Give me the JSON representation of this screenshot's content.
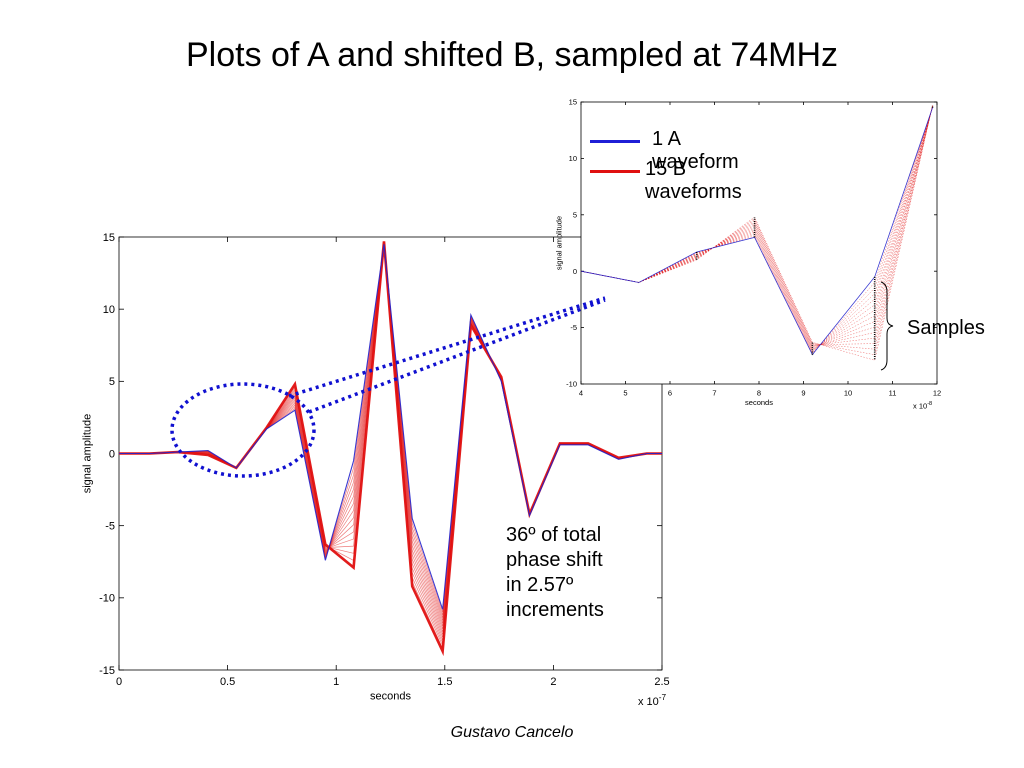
{
  "title": "Plots of A and shifted B, sampled at 74MHz",
  "footer": "Gustavo Cancelo",
  "annotation_lines": [
    "36º of total",
    "phase shift",
    "in 2.57º",
    "increments"
  ],
  "samples_label": "Samples",
  "legend": [
    {
      "label": "1 A waveform",
      "color": "#1f1fd6"
    },
    {
      "label": "15 B waveforms",
      "color": "#e01010"
    }
  ],
  "colors": {
    "a_series": "#2222cc",
    "b_series": "#e01010",
    "callout": "#1010d0"
  },
  "chart_data": [
    {
      "type": "line",
      "xlabel": "seconds",
      "ylabel": "signal amplitude",
      "x_multiplier": "x 10-7",
      "xlim": [
        0,
        2.5
      ],
      "ylim": [
        -15,
        15
      ],
      "xticks": [
        "0",
        "0.5",
        "1",
        "1.5",
        "2",
        "2.5"
      ],
      "yticks": [
        "15",
        "10",
        "5",
        "0",
        "-5",
        "-10",
        "-15"
      ],
      "grid": false,
      "b_series_count": 15,
      "series": [
        {
          "name": "1 A waveform",
          "x": [
            0,
            0.14,
            0.27,
            0.41,
            0.54,
            0.68,
            0.81,
            0.95,
            1.08,
            1.22,
            1.35,
            1.49,
            1.62,
            1.76,
            1.89,
            2.03,
            2.16,
            2.3,
            2.43,
            2.5
          ],
          "y": [
            0,
            0,
            0.1,
            0.2,
            -1,
            1.7,
            3,
            -7.4,
            -0.5,
            14.5,
            -4.5,
            -10.8,
            9.6,
            5,
            -4.3,
            0.6,
            0.6,
            -0.4,
            0,
            0
          ]
        },
        {
          "name": "15 B waveforms",
          "x": [
            0,
            0.14,
            0.27,
            0.41,
            0.54,
            0.68,
            0.81,
            0.95,
            1.08,
            1.22,
            1.35,
            1.49,
            1.62,
            1.76,
            1.89,
            2.03,
            2.16,
            2.3,
            2.43,
            2.5
          ],
          "y": [
            0,
            0,
            0.1,
            -0.1,
            -1,
            1.8,
            4.8,
            -6.3,
            -7.9,
            14.7,
            -9.2,
            -13.7,
            8.9,
            5.3,
            -4.2,
            0.7,
            0.7,
            -0.3,
            0,
            0
          ]
        }
      ]
    },
    {
      "type": "line",
      "xlabel": "seconds",
      "ylabel": "signal amplitude",
      "x_multiplier": "x 10-8",
      "xlim": [
        4,
        12
      ],
      "ylim": [
        -10,
        15
      ],
      "xticks": [
        "4",
        "5",
        "6",
        "7",
        "8",
        "9",
        "10",
        "11",
        "12"
      ],
      "yticks": [
        "15",
        "10",
        "5",
        "0",
        "-5",
        "-10"
      ],
      "grid": false,
      "series": [
        {
          "name": "1 A waveform",
          "x": [
            4,
            5.3,
            6.6,
            7.9,
            9.2,
            10.6,
            11.9
          ],
          "y": [
            0,
            -1,
            1.7,
            3,
            -7.4,
            -0.5,
            14.5
          ]
        },
        {
          "name": "15 B waveforms",
          "x": [
            4,
            5.3,
            6.6,
            7.9,
            9.2,
            10.6,
            11.9
          ],
          "y": [
            0,
            -1,
            1,
            4.8,
            -6.3,
            -7.9,
            14.7
          ]
        }
      ]
    }
  ]
}
